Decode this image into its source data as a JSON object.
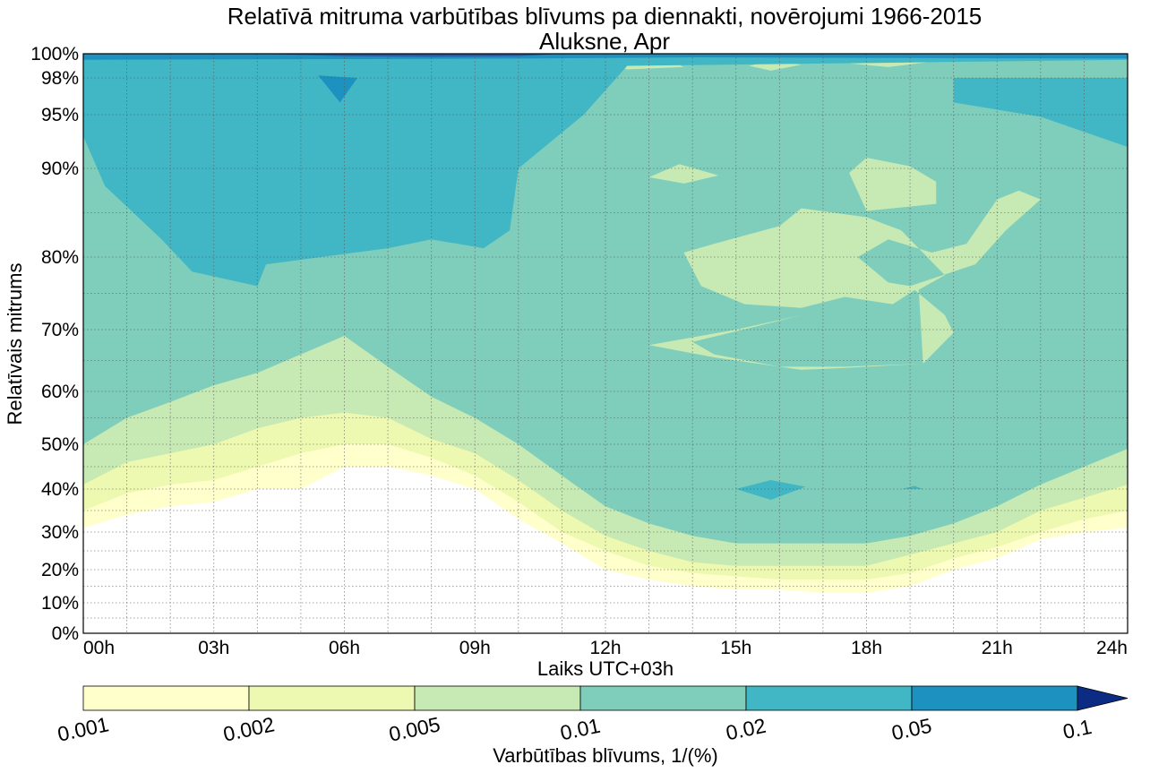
{
  "chart_data": {
    "type": "contour",
    "title": "Relatīvā mitruma varbūtības blīvums pa diennakti, novērojumi 1966-2015",
    "subtitle": "Aluksne, Apr",
    "xlabel": "Laiks UTC+03h",
    "ylabel": "Relatīvais mitrums",
    "x_ticks": [
      "00h",
      "03h",
      "06h",
      "09h",
      "12h",
      "15h",
      "18h",
      "21h",
      "24h"
    ],
    "xlim": [
      0,
      24
    ],
    "y_ticks": [
      "0%",
      "10%",
      "20%",
      "30%",
      "40%",
      "50%",
      "60%",
      "70%",
      "80%",
      "90%",
      "95%",
      "98%",
      "100%"
    ],
    "y_tick_values": [
      0,
      10,
      20,
      30,
      40,
      50,
      60,
      70,
      80,
      90,
      95,
      98,
      100
    ],
    "ylim": [
      0,
      100
    ],
    "grid": true,
    "colorbar": {
      "label": "Varbūtības blīvums, 1/(%)",
      "levels": [
        "0.001",
        "0.002",
        "0.005",
        "0.01",
        "0.02",
        "0.05",
        "0.1"
      ],
      "colors": [
        "#ffffcc",
        "#edf8b1",
        "#c7e9b4",
        "#7fcdbb",
        "#41b6c4",
        "#1d91c0",
        "#225ea8",
        "#0c2c84"
      ],
      "extend": "max"
    },
    "contours": {
      "hours": [
        0,
        1,
        2,
        3,
        4,
        5,
        6,
        7,
        8,
        9,
        10,
        11,
        12,
        13,
        14,
        15,
        16,
        17,
        18,
        19,
        20,
        21,
        22,
        23,
        24
      ],
      "level_0.001_lower_boundary": [
        31,
        34,
        36,
        37,
        40,
        40,
        45,
        45,
        43,
        40,
        33,
        27,
        20,
        17,
        15,
        14,
        14,
        13,
        13,
        15,
        20,
        23,
        28,
        30,
        31
      ],
      "level_0.002_lower_boundary": [
        35,
        39,
        41,
        42,
        45,
        48,
        50,
        50,
        47,
        43,
        37,
        30,
        25,
        21,
        19,
        18,
        17,
        17,
        17,
        19,
        23,
        26,
        30,
        33,
        35
      ],
      "level_0.005_lower_boundary": [
        41,
        46,
        48,
        50,
        53,
        55,
        56,
        55,
        51,
        48,
        42,
        35,
        29,
        25,
        22,
        21,
        21,
        21,
        21,
        24,
        27,
        30,
        35,
        38,
        41
      ],
      "level_0.01_lower_boundary": [
        50,
        55,
        58,
        61,
        63,
        66,
        69,
        64,
        59,
        55,
        50,
        43,
        36,
        32,
        29,
        27,
        27,
        27,
        27,
        29,
        32,
        36,
        41,
        45,
        49
      ],
      "level_0.02_lower_boundary_left": [
        93,
        88,
        82,
        78,
        76,
        79,
        81,
        82,
        81,
        83,
        90,
        95,
        99
      ],
      "level_0.02_lower_boundary_right": [
        92,
        95,
        97,
        98,
        99
      ]
    }
  }
}
